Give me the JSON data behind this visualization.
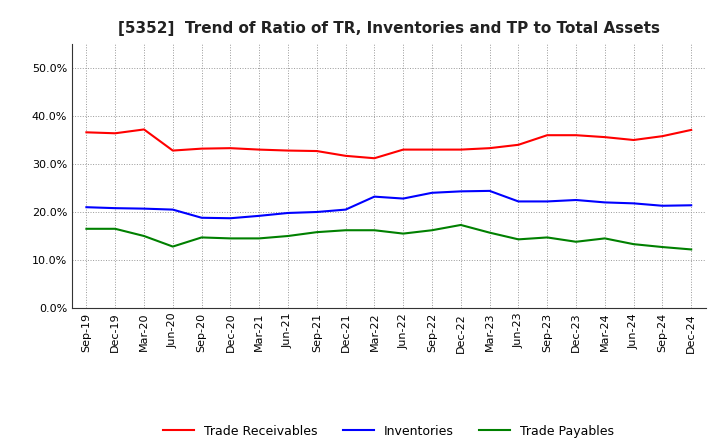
{
  "title": "[5352]  Trend of Ratio of TR, Inventories and TP to Total Assets",
  "x_labels": [
    "Sep-19",
    "Dec-19",
    "Mar-20",
    "Jun-20",
    "Sep-20",
    "Dec-20",
    "Mar-21",
    "Jun-21",
    "Sep-21",
    "Dec-21",
    "Mar-22",
    "Jun-22",
    "Sep-22",
    "Dec-22",
    "Mar-23",
    "Jun-23",
    "Sep-23",
    "Dec-23",
    "Mar-24",
    "Jun-24",
    "Sep-24",
    "Dec-24"
  ],
  "trade_receivables": [
    0.366,
    0.364,
    0.372,
    0.328,
    0.332,
    0.333,
    0.33,
    0.328,
    0.327,
    0.317,
    0.312,
    0.33,
    0.33,
    0.33,
    0.333,
    0.34,
    0.36,
    0.36,
    0.356,
    0.35,
    0.358,
    0.371
  ],
  "inventories": [
    0.21,
    0.208,
    0.207,
    0.205,
    0.188,
    0.187,
    0.192,
    0.198,
    0.2,
    0.205,
    0.232,
    0.228,
    0.24,
    0.243,
    0.244,
    0.222,
    0.222,
    0.225,
    0.22,
    0.218,
    0.213,
    0.214
  ],
  "trade_payables": [
    0.165,
    0.165,
    0.15,
    0.128,
    0.147,
    0.145,
    0.145,
    0.15,
    0.158,
    0.162,
    0.162,
    0.155,
    0.162,
    0.173,
    0.157,
    0.143,
    0.147,
    0.138,
    0.145,
    0.133,
    0.127,
    0.122
  ],
  "tr_color": "#ff0000",
  "inv_color": "#0000ff",
  "tp_color": "#008000",
  "ylim": [
    0.0,
    0.55
  ],
  "yticks": [
    0.0,
    0.1,
    0.2,
    0.3,
    0.4,
    0.5
  ],
  "background_color": "#ffffff",
  "grid_color": "#999999",
  "line_width": 1.5,
  "title_fontsize": 11,
  "tick_fontsize": 8,
  "legend_fontsize": 9
}
